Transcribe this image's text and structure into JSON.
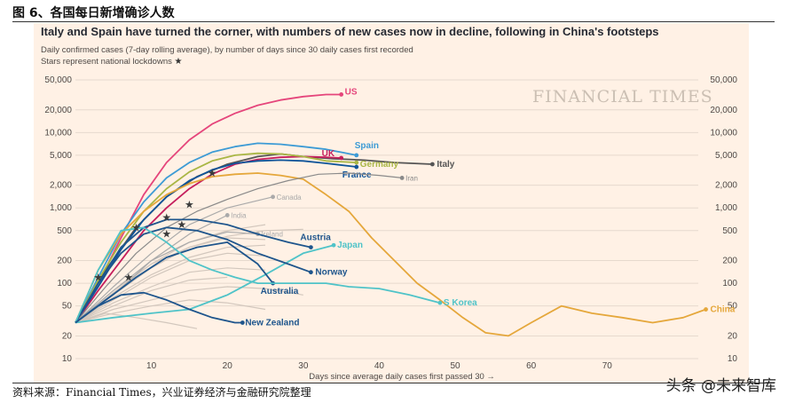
{
  "figure": {
    "title": "图 6、各国每日新增确诊人数",
    "source": "资料来源：Financial Times，兴业证券经济与金融研究院整理",
    "watermark": "头条 @未来智库"
  },
  "chart_data": {
    "type": "line",
    "title": "Italy and Spain have turned the corner, with numbers of new cases now in decline, following in China's footsteps",
    "subtitle": "Daily confirmed cases (7-day rolling average), by number of days since 30 daily cases first recorded",
    "note": "Stars represent national lockdowns",
    "note_star": "★",
    "brand": "FINANCIAL TIMES",
    "xlabel": "Days since average daily cases first passed 30 →",
    "x_ticks": [
      10,
      20,
      30,
      40,
      50,
      60,
      70
    ],
    "xlim": [
      0,
      82
    ],
    "yscale": "log",
    "ylim": [
      10,
      50000
    ],
    "y_ticks": [
      10,
      20,
      50,
      100,
      200,
      500,
      1000,
      2000,
      5000,
      10000,
      20000,
      50000
    ],
    "y_tick_labels": [
      "10",
      "20",
      "50",
      "100",
      "200",
      "500",
      "1,000",
      "2,000",
      "5,000",
      "10,000",
      "20,000",
      "50,000"
    ],
    "highlighted_series": [
      {
        "name": "US",
        "color": "#e5457b",
        "x": [
          0,
          3,
          6,
          9,
          12,
          15,
          18,
          21,
          24,
          27,
          30,
          33,
          35
        ],
        "y": [
          30,
          100,
          400,
          1500,
          4000,
          8000,
          13000,
          18000,
          23000,
          27000,
          30000,
          32000,
          32000
        ],
        "label": "US"
      },
      {
        "name": "Spain",
        "color": "#3d9bd5",
        "x": [
          0,
          3,
          6,
          9,
          12,
          15,
          18,
          21,
          24,
          27,
          30,
          33,
          37
        ],
        "y": [
          30,
          120,
          450,
          1200,
          2500,
          4000,
          5500,
          6500,
          7200,
          7000,
          6500,
          6000,
          5000
        ],
        "label": "Spain"
      },
      {
        "name": "Italy",
        "color": "#555555",
        "x": [
          0,
          4,
          8,
          12,
          16,
          20,
          24,
          27,
          30,
          34,
          38,
          42,
          47
        ],
        "y": [
          30,
          150,
          550,
          1400,
          2600,
          3800,
          4800,
          5200,
          4800,
          4500,
          4300,
          4000,
          3800
        ],
        "label": "Italy"
      },
      {
        "name": "UK",
        "color": "#c51f5d",
        "x": [
          0,
          3,
          6,
          9,
          12,
          15,
          18,
          21,
          24,
          27,
          30,
          33,
          35
        ],
        "y": [
          30,
          80,
          200,
          500,
          1000,
          1800,
          2800,
          3800,
          4400,
          4700,
          4800,
          4700,
          4600
        ],
        "label": "UK"
      },
      {
        "name": "Germany",
        "color": "#a9b644",
        "x": [
          0,
          3,
          6,
          9,
          12,
          15,
          18,
          21,
          24,
          27,
          30,
          33,
          37
        ],
        "y": [
          30,
          110,
          350,
          900,
          1800,
          3000,
          4200,
          5000,
          5300,
          5200,
          4800,
          4200,
          4000
        ],
        "label": "Germany"
      },
      {
        "name": "France",
        "color": "#0f5499",
        "x": [
          0,
          3,
          6,
          9,
          12,
          15,
          18,
          21,
          24,
          27,
          30,
          33,
          37
        ],
        "y": [
          30,
          90,
          280,
          700,
          1400,
          2300,
          3200,
          3900,
          4200,
          4300,
          4200,
          3900,
          3500
        ],
        "label": "France"
      },
      {
        "name": "China",
        "color": "#e5a73b",
        "x": [
          0,
          3,
          6,
          9,
          12,
          15,
          18,
          21,
          24,
          27,
          30,
          33,
          36,
          39,
          42,
          45,
          48,
          51,
          54,
          57,
          60,
          64,
          68,
          72,
          76,
          80,
          83
        ],
        "y": [
          30,
          150,
          450,
          900,
          1500,
          2100,
          2600,
          2800,
          2900,
          2700,
          2400,
          1500,
          900,
          400,
          200,
          100,
          60,
          35,
          22,
          20,
          30,
          50,
          40,
          35,
          30,
          35,
          45
        ],
        "label": "China"
      },
      {
        "name": "Iran",
        "color": "#8a8a8a",
        "x": [
          0,
          4,
          8,
          12,
          16,
          20,
          24,
          28,
          32,
          36,
          40,
          43
        ],
        "y": [
          30,
          90,
          250,
          550,
          900,
          1300,
          1800,
          2300,
          2800,
          2900,
          2700,
          2500
        ],
        "label": "Iran"
      },
      {
        "name": "Canada",
        "color": "#aaaaaa",
        "x": [
          0,
          5,
          10,
          15,
          20,
          26
        ],
        "y": [
          30,
          90,
          250,
          600,
          1000,
          1400
        ],
        "label": "Canada"
      },
      {
        "name": "India",
        "color": "#aaaaaa",
        "x": [
          0,
          5,
          10,
          15,
          20
        ],
        "y": [
          30,
          70,
          200,
          450,
          800
        ],
        "label": "India"
      },
      {
        "name": "Ireland",
        "color": "#aaaaaa",
        "x": [
          0,
          5,
          10,
          15,
          20,
          24
        ],
        "y": [
          30,
          80,
          200,
          350,
          480,
          450
        ],
        "label": "Ireland"
      },
      {
        "name": "Austria",
        "color": "#1e558c",
        "x": [
          0,
          3,
          6,
          9,
          12,
          16,
          20,
          24,
          28,
          31
        ],
        "y": [
          30,
          100,
          300,
          550,
          700,
          700,
          600,
          450,
          350,
          300
        ],
        "label": "Austria"
      },
      {
        "name": "Japan",
        "color": "#4fc3c8",
        "x": [
          0,
          5,
          10,
          15,
          20,
          25,
          30,
          34
        ],
        "y": [
          30,
          35,
          40,
          45,
          70,
          130,
          250,
          320
        ],
        "label": "Japan"
      },
      {
        "name": "Norway",
        "color": "#1e558c",
        "x": [
          0,
          3,
          6,
          9,
          12,
          16,
          20,
          24,
          28,
          31
        ],
        "y": [
          30,
          100,
          250,
          450,
          550,
          500,
          380,
          250,
          180,
          140
        ],
        "label": "Norway"
      },
      {
        "name": "Australia",
        "color": "#1e558c",
        "x": [
          0,
          4,
          8,
          12,
          16,
          20,
          24,
          26
        ],
        "y": [
          30,
          60,
          120,
          220,
          300,
          350,
          180,
          100
        ],
        "label": "Australia"
      },
      {
        "name": "S Korea",
        "color": "#4fc3c8",
        "x": [
          0,
          3,
          6,
          9,
          12,
          15,
          18,
          21,
          24,
          27,
          30,
          33,
          36,
          40,
          44,
          48
        ],
        "y": [
          30,
          150,
          500,
          550,
          350,
          200,
          150,
          120,
          100,
          100,
          100,
          100,
          90,
          85,
          70,
          55
        ],
        "label": "S Korea"
      },
      {
        "name": "New Zealand",
        "color": "#1e558c",
        "x": [
          0,
          3,
          6,
          9,
          12,
          15,
          18,
          21,
          22
        ],
        "y": [
          30,
          50,
          70,
          75,
          60,
          45,
          35,
          30,
          30
        ],
        "label": "New Zealand"
      }
    ],
    "background_series": [
      {
        "x": [
          0,
          5,
          10,
          15,
          20,
          25
        ],
        "y": [
          30,
          60,
          120,
          200,
          250,
          230
        ]
      },
      {
        "x": [
          0,
          5,
          10,
          15,
          20,
          25
        ],
        "y": [
          30,
          55,
          90,
          140,
          160,
          150
        ]
      },
      {
        "x": [
          0,
          5,
          10,
          15,
          20,
          25
        ],
        "y": [
          30,
          70,
          160,
          300,
          400,
          380
        ]
      },
      {
        "x": [
          0,
          5,
          10,
          15,
          20
        ],
        "y": [
          30,
          50,
          80,
          110,
          120
        ]
      },
      {
        "x": [
          0,
          5,
          10,
          15,
          20,
          25,
          30
        ],
        "y": [
          30,
          45,
          60,
          80,
          90,
          85,
          70
        ]
      },
      {
        "x": [
          0,
          5,
          10,
          15,
          20,
          25
        ],
        "y": [
          30,
          65,
          130,
          220,
          300,
          320
        ]
      },
      {
        "x": [
          0,
          4,
          8,
          12,
          16
        ],
        "y": [
          30,
          40,
          35,
          30,
          25
        ]
      },
      {
        "x": [
          0,
          5,
          10,
          15,
          20,
          25
        ],
        "y": [
          30,
          80,
          180,
          350,
          500,
          600
        ]
      },
      {
        "x": [
          0,
          5,
          10,
          15,
          20,
          25
        ],
        "y": [
          30,
          40,
          50,
          60,
          55,
          45
        ]
      },
      {
        "x": [
          0,
          5,
          10,
          15,
          20,
          25,
          30
        ],
        "y": [
          30,
          75,
          180,
          300,
          420,
          500,
          520
        ]
      }
    ],
    "lockdown_markers": [
      {
        "x": 3,
        "y": 120
      },
      {
        "x": 7,
        "y": 120
      },
      {
        "x": 8,
        "y": 550
      },
      {
        "x": 12,
        "y": 750
      },
      {
        "x": 12,
        "y": 450
      },
      {
        "x": 14,
        "y": 600
      },
      {
        "x": 15,
        "y": 1100
      },
      {
        "x": 18,
        "y": 2900
      }
    ]
  }
}
